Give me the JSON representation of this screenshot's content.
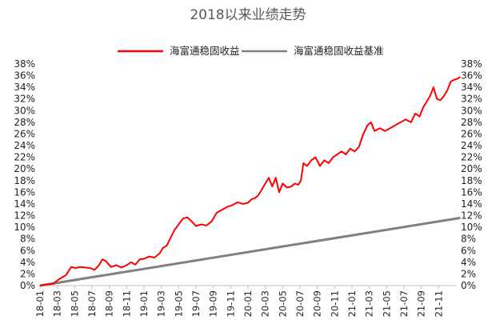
{
  "chart_data": {
    "type": "line",
    "title": "2018以来业绩走势",
    "xlabel": "",
    "ylabel": "",
    "ylim": [
      0,
      38
    ],
    "y_ticks": [
      "0%",
      "2%",
      "4%",
      "6%",
      "8%",
      "10%",
      "12%",
      "14%",
      "16%",
      "18%",
      "20%",
      "22%",
      "24%",
      "26%",
      "28%",
      "30%",
      "32%",
      "34%",
      "36%",
      "38%"
    ],
    "y_tick_values": [
      0,
      2,
      4,
      6,
      8,
      10,
      12,
      14,
      16,
      18,
      20,
      22,
      24,
      26,
      28,
      30,
      32,
      34,
      36,
      38
    ],
    "y_axes": "left and right, identical scale",
    "grid": false,
    "legend_position": "top-center",
    "x_ticks": [
      "18-01",
      "18-03",
      "18-05",
      "18-07",
      "18-09",
      "18-11",
      "19-01",
      "19-03",
      "19-05",
      "19-07",
      "19-09",
      "19-11",
      "20-01",
      "20-03",
      "20-05",
      "20-07",
      "20-09",
      "20-11",
      "21-01",
      "21-03",
      "21-05",
      "21-07",
      "21-09",
      "21-11"
    ],
    "x_tick_months": [
      0,
      2,
      4,
      6,
      8,
      10,
      12,
      14,
      16,
      18,
      20,
      22,
      24,
      26,
      28,
      30,
      32,
      34,
      36,
      38,
      40,
      42,
      44,
      46
    ],
    "x_range_months": [
      0,
      48
    ],
    "series": [
      {
        "name": "海富通稳固收益",
        "color": "#ff0000",
        "x_month": [
          0,
          0.8,
          1.5,
          2.2,
          3,
          3.6,
          4.1,
          4.6,
          5.2,
          5.8,
          6.3,
          6.8,
          7.2,
          7.6,
          8.2,
          8.8,
          9.4,
          10,
          10.5,
          11,
          11.5,
          12,
          12.6,
          13.2,
          13.8,
          14.2,
          14.6,
          15,
          15.5,
          16,
          16.5,
          17,
          17.5,
          18,
          18.6,
          19.2,
          19.8,
          20.4,
          21,
          21.6,
          22.2,
          22.8,
          23.4,
          24,
          24.4,
          24.8,
          25.2,
          25.6,
          26,
          26.4,
          26.8,
          27.2,
          27.6,
          28,
          28.5,
          29,
          29.4,
          29.8,
          30.1,
          30.4,
          30.8,
          31.3,
          31.8,
          32.3,
          32.8,
          33.3,
          33.8,
          34.3,
          34.8,
          35.3,
          35.8,
          36.3,
          36.8,
          37.3,
          37.8,
          38.2,
          38.6,
          39.2,
          39.8,
          40.4,
          41,
          41.6,
          42.2,
          42.8,
          43.3,
          43.8,
          44.2,
          44.6,
          45,
          45.4,
          45.8,
          46.2,
          46.6,
          47,
          47.4,
          47.8,
          48.2,
          48.5
        ],
        "values": [
          0,
          0.2,
          0.3,
          1.1,
          1.8,
          3.2,
          3.0,
          3.2,
          3.1,
          3.0,
          2.7,
          3.5,
          4.5,
          4.2,
          3.2,
          3.5,
          3.1,
          3.5,
          4.0,
          3.6,
          4.5,
          4.6,
          5.0,
          4.8,
          5.5,
          6.5,
          6.8,
          8.0,
          9.5,
          10.5,
          11.5,
          11.7,
          11.0,
          10.2,
          10.5,
          10.3,
          11.0,
          12.5,
          13.0,
          13.5,
          13.8,
          14.3,
          14.0,
          14.2,
          14.8,
          15.0,
          15.5,
          16.5,
          17.5,
          18.5,
          17.0,
          18.5,
          16.0,
          17.5,
          16.8,
          17.0,
          17.5,
          17.3,
          18.0,
          21.0,
          20.5,
          21.5,
          22.0,
          20.5,
          21.5,
          21.0,
          22.0,
          22.5,
          23.0,
          22.5,
          23.5,
          23.0,
          23.8,
          26.0,
          27.5,
          28.0,
          26.5,
          27.0,
          26.5,
          27.0,
          27.5,
          28.0,
          28.5,
          28.0,
          29.5,
          29.0,
          30.5,
          31.5,
          32.5,
          34.0,
          32.0,
          31.8,
          32.5,
          33.5,
          35.0,
          35.3,
          35.5,
          35.8
        ]
      },
      {
        "name": "海富通稳固收益基准",
        "color": "#808080",
        "x_month": [
          0,
          48.5
        ],
        "values": [
          0,
          11.6
        ]
      }
    ]
  }
}
